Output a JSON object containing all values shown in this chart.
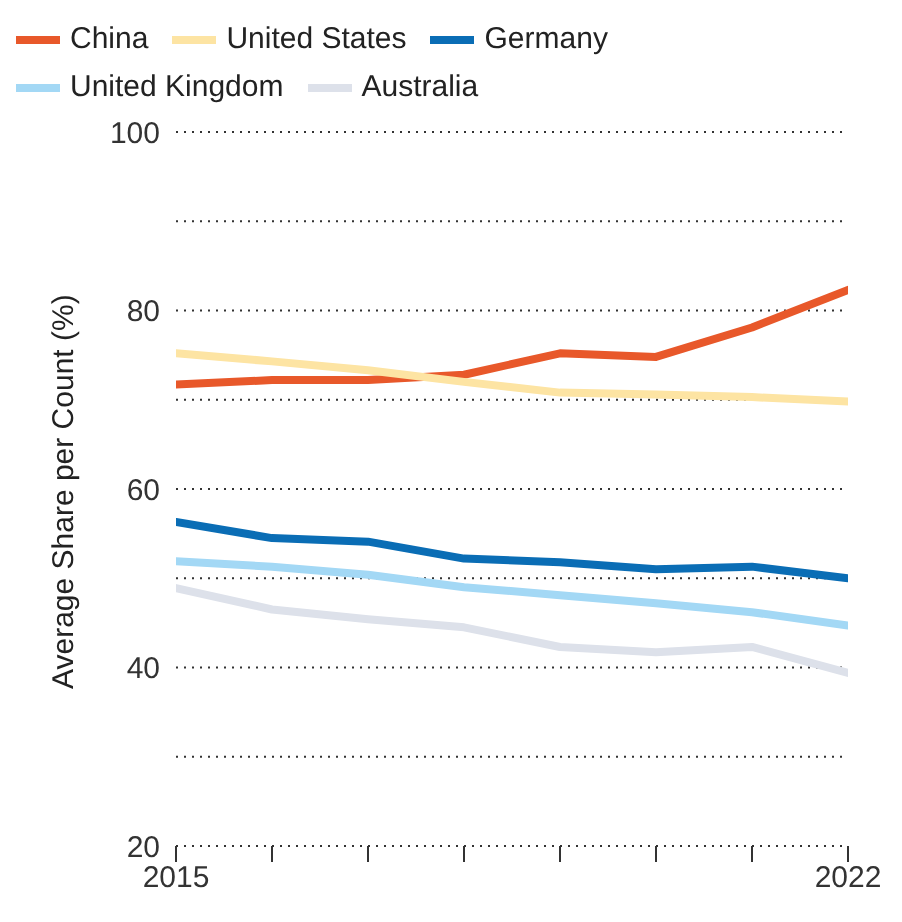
{
  "chart_data": {
    "type": "line",
    "ylabel": "Average Share per Count (%)",
    "x": [
      2015,
      2016,
      2017,
      2018,
      2019,
      2020,
      2021,
      2022
    ],
    "series": [
      {
        "name": "China",
        "color": "#e8582a",
        "values": [
          71.7,
          72.2,
          72.2,
          72.8,
          75.2,
          74.8,
          78.1,
          82.3
        ]
      },
      {
        "name": "United States",
        "color": "#fde4a3",
        "values": [
          75.2,
          74.3,
          73.3,
          72.0,
          70.8,
          70.6,
          70.3,
          69.8
        ]
      },
      {
        "name": "Germany",
        "color": "#0a6db5",
        "values": [
          56.3,
          54.5,
          54.1,
          52.2,
          51.8,
          51.0,
          51.3,
          50.0
        ]
      },
      {
        "name": "United Kingdom",
        "color": "#a3d8f5",
        "values": [
          51.9,
          51.3,
          50.4,
          49.0,
          48.1,
          47.2,
          46.2,
          44.7
        ]
      },
      {
        "name": "Australia",
        "color": "#dde1ea",
        "values": [
          48.9,
          46.5,
          45.4,
          44.5,
          42.3,
          41.7,
          42.3,
          39.4
        ]
      }
    ],
    "xlim": [
      2015,
      2022
    ],
    "xticks": [
      2015,
      {
        "value": 2016,
        "label": null
      },
      {
        "value": 2017,
        "label": null
      },
      {
        "value": 2018,
        "label": null
      },
      {
        "value": 2019,
        "label": null
      },
      {
        "value": 2020,
        "label": null
      },
      {
        "value": 2021,
        "label": null
      },
      2022
    ],
    "ylim": [
      20,
      100
    ],
    "yticks": [
      20,
      {
        "value": 30,
        "label": null
      },
      40,
      {
        "value": 50,
        "label": null
      },
      60,
      {
        "value": 70,
        "label": null
      },
      80,
      {
        "value": 90,
        "label": null
      },
      100
    ],
    "grid": "y",
    "legend": "top left",
    "marker": "none",
    "line_style": "solid"
  }
}
